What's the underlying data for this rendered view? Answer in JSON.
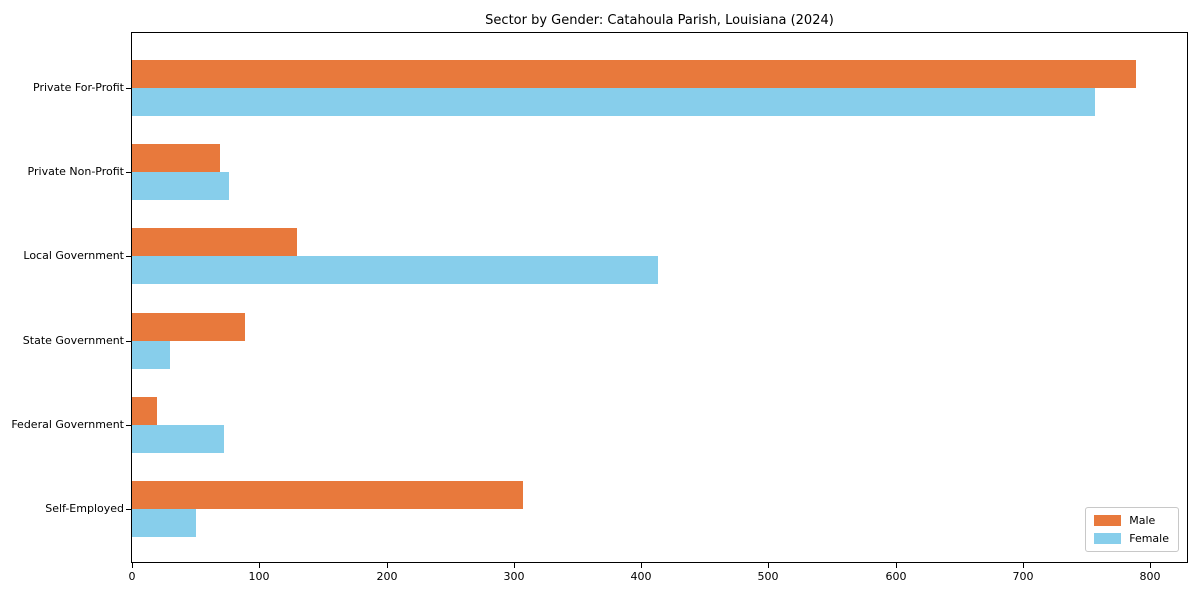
{
  "figure": {
    "title": "Sector by Gender: Catahoula Parish, Louisiana (2024)"
  },
  "chart_data": {
    "type": "bar",
    "orientation": "horizontal",
    "title": "Sector by Gender: Catahoula Parish, Louisiana (2024)",
    "categories": [
      "Private For-Profit",
      "Private Non-Profit",
      "Local Government",
      "State Government",
      "Federal Government",
      "Self-Employed"
    ],
    "series": [
      {
        "name": "Male",
        "color": "#e8793c",
        "values": [
          789,
          69,
          130,
          89,
          20,
          307
        ]
      },
      {
        "name": "Female",
        "color": "#87ceeb",
        "values": [
          757,
          76,
          413,
          30,
          72,
          50
        ]
      }
    ],
    "x_ticks": [
      0,
      100,
      200,
      300,
      400,
      500,
      600,
      700,
      800
    ],
    "xlim": [
      0,
      829
    ],
    "xlabel": "",
    "ylabel": "",
    "grid": false,
    "legend_position": "lower right",
    "axis_color": "#000000",
    "background_color": "#ffffff"
  }
}
